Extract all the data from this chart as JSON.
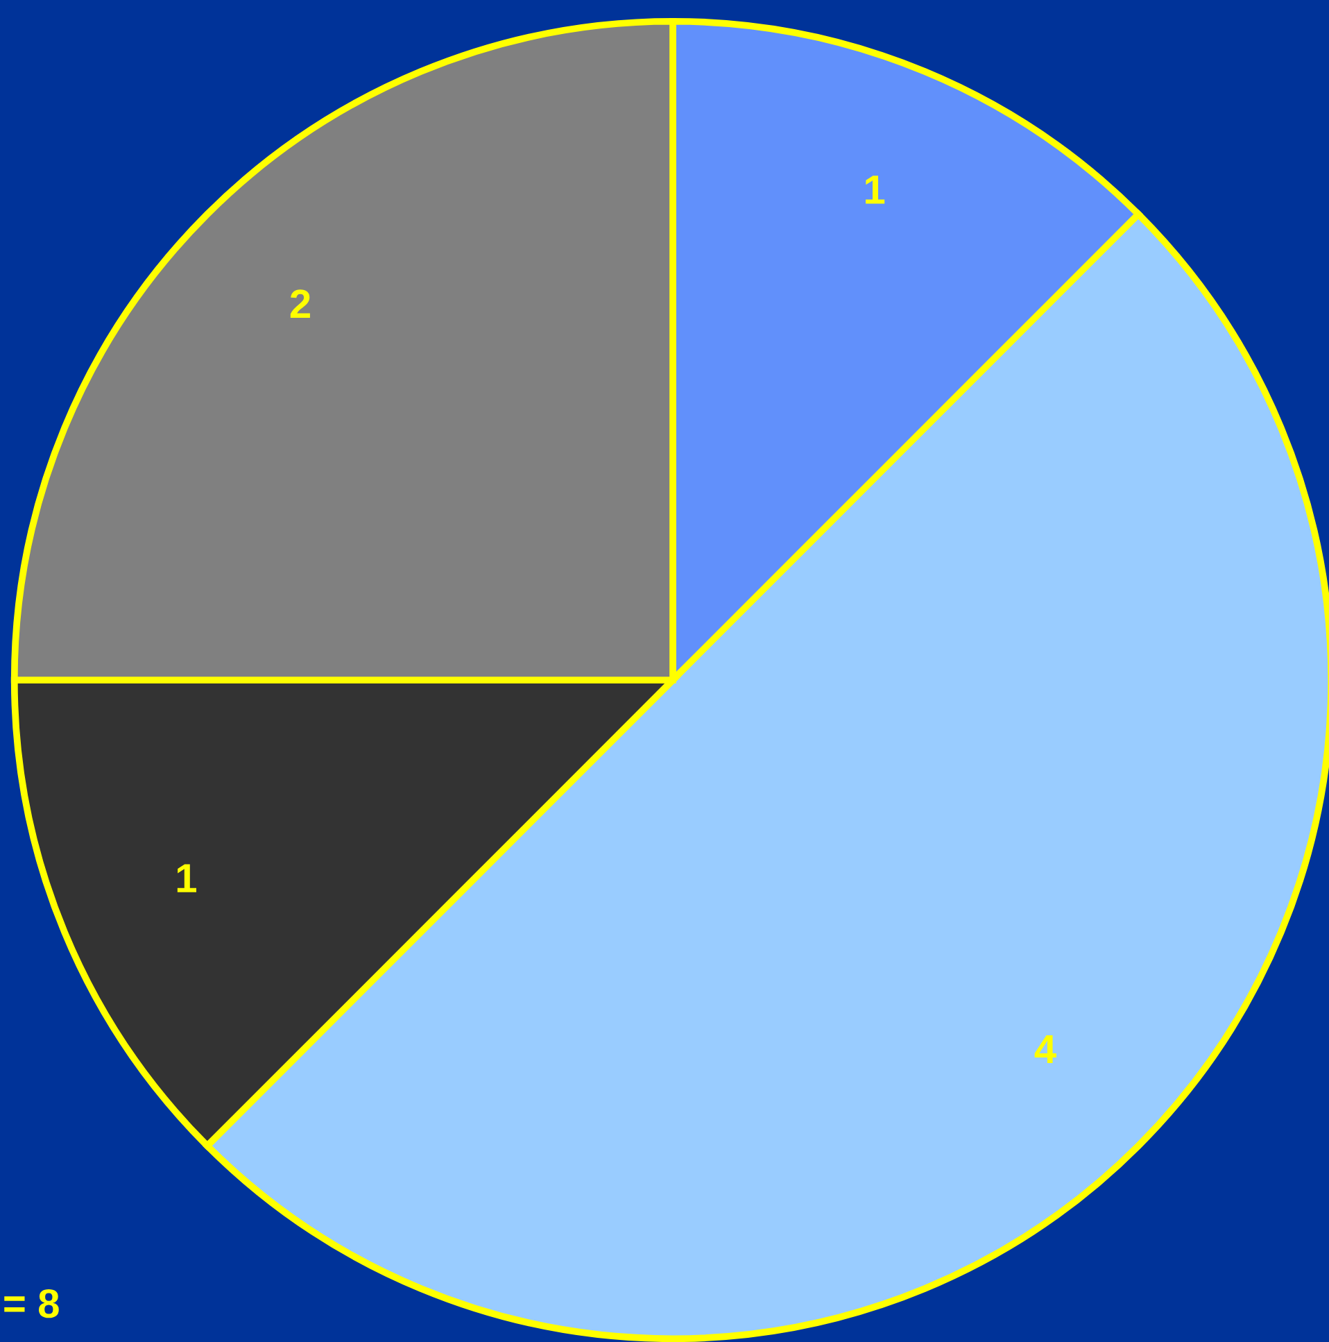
{
  "chart_data": {
    "type": "pie",
    "categories": [
      null,
      null,
      null,
      null
    ],
    "values": [
      1,
      4,
      1,
      2
    ],
    "colors": [
      "#6190fb",
      "#99ccff",
      "#333333",
      "#808080"
    ],
    "data_labels": true,
    "legend": false,
    "annotations": [
      "= 8"
    ]
  }
}
